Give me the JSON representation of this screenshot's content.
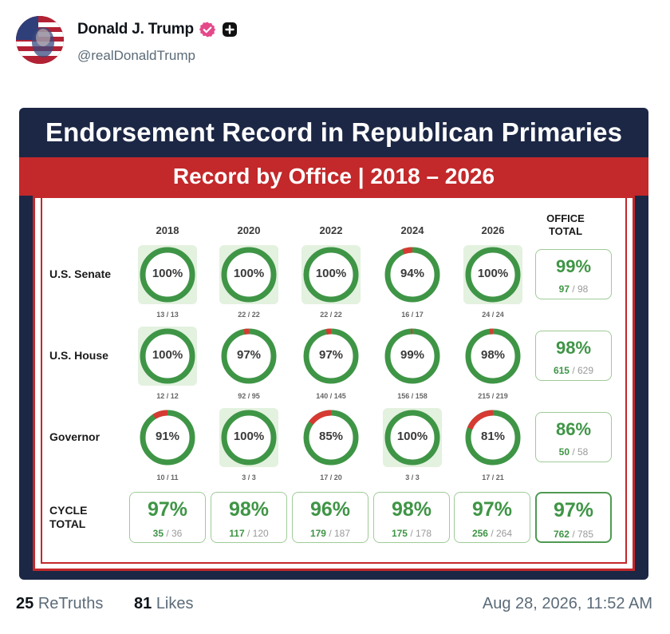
{
  "post": {
    "author_name": "Donald J. Trump",
    "handle": "@realDonaldTrump",
    "retruths_count": "25",
    "retruths_label": "ReTruths",
    "likes_count": "81",
    "likes_label": "Likes",
    "timestamp": "Aug 28, 2026, 11:52 AM"
  },
  "icons": {
    "verified": "verified-badge-icon",
    "plus": "plus-badge-icon"
  },
  "colors": {
    "navy": "#1c2745",
    "red": "#c3282a",
    "green": "#3f9546",
    "ring_miss": "#d63a32",
    "verified_pink": "#e4498a"
  },
  "graphic": {
    "title": "Endorsement Record in Republican Primaries",
    "subtitle": "Record by Office | 2018 – 2026",
    "years": [
      "2018",
      "2020",
      "2022",
      "2024",
      "2026"
    ],
    "office_total_heading_line1": "OFFICE",
    "office_total_heading_line2": "TOTAL",
    "rows": [
      {
        "label": "U.S. Senate",
        "cells": [
          {
            "pct": "100%",
            "value": 100,
            "count": "13 / 13"
          },
          {
            "pct": "100%",
            "value": 100,
            "count": "22 / 22"
          },
          {
            "pct": "100%",
            "value": 100,
            "count": "22 / 22"
          },
          {
            "pct": "94%",
            "value": 94,
            "count": "16 / 17"
          },
          {
            "pct": "100%",
            "value": 100,
            "count": "24 / 24"
          }
        ],
        "total": {
          "pct": "99%",
          "num": "97",
          "den": "/ 98"
        }
      },
      {
        "label": "U.S. House",
        "cells": [
          {
            "pct": "100%",
            "value": 100,
            "count": "12 / 12"
          },
          {
            "pct": "97%",
            "value": 97,
            "count": "92 / 95"
          },
          {
            "pct": "97%",
            "value": 97,
            "count": "140 / 145"
          },
          {
            "pct": "99%",
            "value": 99,
            "count": "156 / 158"
          },
          {
            "pct": "98%",
            "value": 98,
            "count": "215 / 219"
          }
        ],
        "total": {
          "pct": "98%",
          "num": "615",
          "den": "/ 629"
        }
      },
      {
        "label": "Governor",
        "cells": [
          {
            "pct": "91%",
            "value": 91,
            "count": "10 / 11"
          },
          {
            "pct": "100%",
            "value": 100,
            "count": "3 / 3"
          },
          {
            "pct": "85%",
            "value": 85,
            "count": "17 / 20"
          },
          {
            "pct": "100%",
            "value": 100,
            "count": "3 / 3"
          },
          {
            "pct": "81%",
            "value": 81,
            "count": "17 / 21"
          }
        ],
        "total": {
          "pct": "86%",
          "num": "50",
          "den": "/ 58"
        }
      }
    ],
    "cycle_total_label_line1": "CYCLE",
    "cycle_total_label_line2": "TOTAL",
    "cycle_totals": [
      {
        "pct": "97%",
        "num": "35",
        "den": "/ 36"
      },
      {
        "pct": "98%",
        "num": "117",
        "den": "/ 120"
      },
      {
        "pct": "96%",
        "num": "179",
        "den": "/ 187"
      },
      {
        "pct": "98%",
        "num": "175",
        "den": "/ 178"
      },
      {
        "pct": "97%",
        "num": "256",
        "den": "/ 264"
      }
    ],
    "grand_total": {
      "pct": "97%",
      "num": "762",
      "den": "/ 785"
    }
  }
}
